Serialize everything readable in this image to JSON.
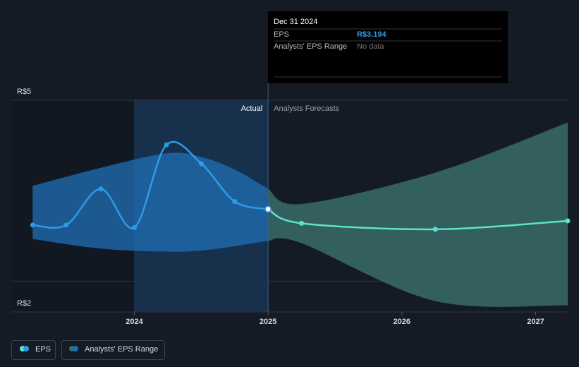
{
  "chart_data": {
    "type": "line",
    "xlim": [
      2023.08,
      2027.24
    ],
    "xticks": [
      2024,
      2025,
      2026,
      2027
    ],
    "ylim": [
      1.49,
      5
    ],
    "yticks": [
      {
        "value": 5,
        "label": "R$5"
      },
      {
        "value": 2,
        "label": "R$2"
      }
    ],
    "grid": true,
    "divider": 2025,
    "divider_labels": [
      "Actual",
      "Analysts Forecasts"
    ],
    "series": [
      {
        "name": "EPS",
        "color": "#2e9be8",
        "forecast_color": "#5ee3cb",
        "x": [
          2023.24,
          2023.49,
          2023.75,
          2024.0,
          2024.24,
          2024.5,
          2024.75,
          2025.0,
          2025.25,
          2026.25,
          2027.24
        ],
        "values": [
          2.93,
          2.93,
          3.53,
          2.89,
          4.26,
          3.95,
          3.32,
          3.194,
          2.96,
          2.86,
          3.0
        ]
      },
      {
        "name": "Analysts' EPS Range",
        "color": "#1f6fb5",
        "forecast_color": "#3a6b6a",
        "x": [
          2023.24,
          2023.75,
          2024.24,
          2024.5,
          2024.75,
          2025.0,
          2025.25,
          2026.25,
          2027.24
        ],
        "high": [
          3.58,
          3.88,
          4.12,
          4.06,
          3.85,
          3.53,
          3.28,
          3.8,
          4.63
        ],
        "low": [
          2.7,
          2.54,
          2.49,
          2.51,
          2.58,
          2.67,
          2.63,
          1.67,
          1.6
        ]
      }
    ],
    "tooltip": {
      "date": "Dec 31 2024",
      "rows": [
        {
          "label": "EPS",
          "value": "R$3.194"
        },
        {
          "label": "Analysts' EPS Range",
          "value": "No data"
        }
      ]
    },
    "legend": [
      "EPS",
      "Analysts' EPS Range"
    ]
  }
}
